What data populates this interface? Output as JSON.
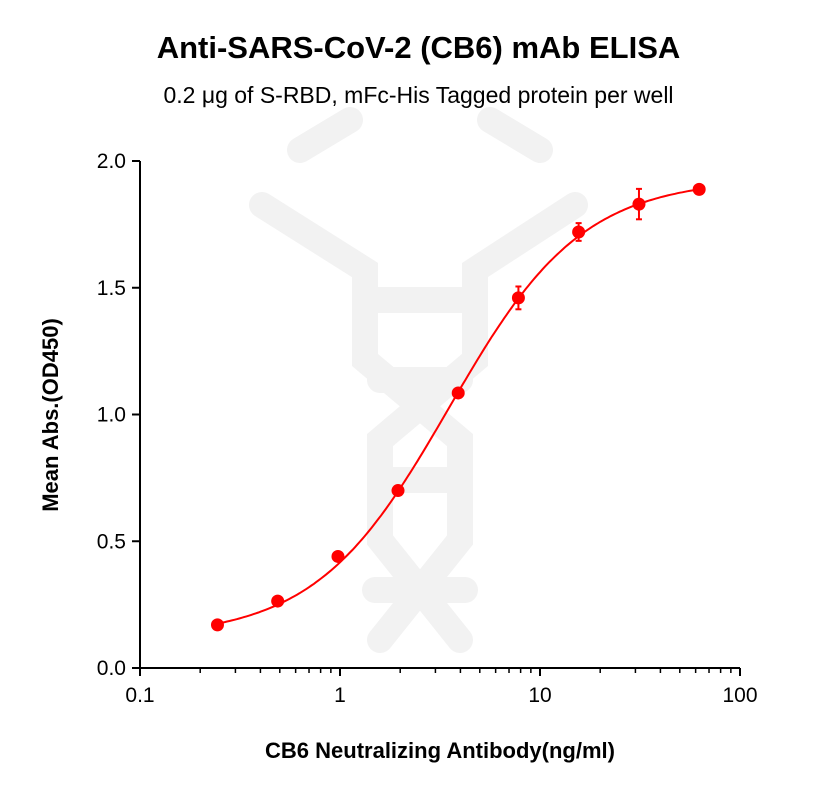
{
  "chart_data": {
    "type": "scatter",
    "title": "Anti-SARS-CoV-2 (CB6) mAb ELISA",
    "subtitle": "0.2 μg of S-RBD, mFc-His Tagged protein per well",
    "xlabel": "CB6 Neutralizing Antibody(ng/ml)",
    "ylabel": "Mean Abs.(OD450)",
    "xscale": "log",
    "xlim": [
      0.1,
      100
    ],
    "ylim": [
      0,
      2.0
    ],
    "xticks": [
      "0.1",
      "1",
      "10",
      "100"
    ],
    "yticks": [
      "0.0",
      "0.5",
      "1.0",
      "1.5",
      "2.0"
    ],
    "grid": false,
    "color": "#ff0000",
    "fit_curve": "sigmoidal",
    "x": [
      0.244,
      0.488,
      0.977,
      1.95,
      3.9,
      7.8,
      15.6,
      31.25,
      62.5
    ],
    "y": [
      0.17,
      0.264,
      0.44,
      0.7,
      1.085,
      1.46,
      1.72,
      1.83,
      1.888
    ],
    "error": [
      0.005,
      0.005,
      0.01,
      0.01,
      0.01,
      0.045,
      0.035,
      0.06,
      0.005
    ]
  }
}
